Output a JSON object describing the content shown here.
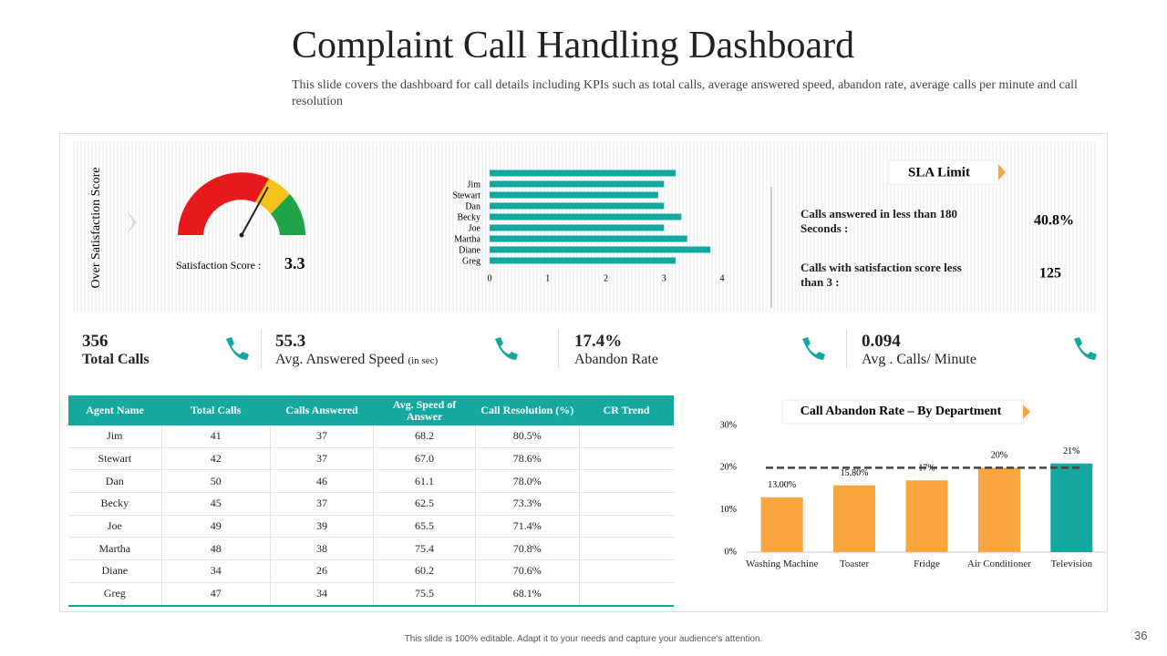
{
  "title": "Complaint Call Handling Dashboard",
  "subtitle": "This slide covers the dashboard for call details including KPIs such as total calls, average answered speed, abandon rate, average calls per minute and call resolution",
  "satisfaction": {
    "axis_label": "Over Satisfaction Score",
    "label": "Satisfaction  Score :",
    "value": 3.3,
    "lim": [
      0,
      5
    ]
  },
  "sla": {
    "title": "SLA Limit",
    "items": [
      {
        "label": "Calls answered in less than 180 Seconds :",
        "value": "40.8%"
      },
      {
        "label": "Calls with satisfaction score less than 3 :",
        "value": 125
      }
    ]
  },
  "kpis": [
    {
      "value": 356,
      "label": "Total Calls"
    },
    {
      "value": 55.3,
      "label": "Avg. Answered Speed",
      "unit": "(in sec)"
    },
    {
      "value": "17.4%",
      "label": "Abandon Rate"
    },
    {
      "value": 0.094,
      "label": "Avg . Calls/ Minute"
    }
  ],
  "chart_data": [
    {
      "type": "barh",
      "categories": [
        null,
        "Jim",
        "Stewart",
        "Dan",
        "Becky",
        "Joe",
        "Martha",
        "Diane",
        "Greg"
      ],
      "values": [
        3.2,
        3.0,
        2.9,
        3.0,
        3.3,
        3.0,
        3.4,
        3.8,
        3.2
      ],
      "color": "#14a8a0",
      "xlim": [
        0,
        4
      ],
      "xticks": [
        0,
        1,
        2,
        3,
        4
      ]
    },
    {
      "type": "column",
      "title": "Call Abandon Rate – By Department",
      "categories": [
        "Washing Machine",
        "Toaster",
        "Fridge",
        "Air Conditioner",
        "Television"
      ],
      "values": [
        13,
        15.8,
        17,
        20,
        21
      ],
      "value_labels": [
        "13.00%",
        "15.80%",
        "17%",
        "20%",
        "21%"
      ],
      "colors": [
        "#f9a640",
        "#f9a640",
        "#f9a640",
        "#f9a640",
        "#14a8a0"
      ],
      "reference_line": 20,
      "ylim": [
        0,
        30
      ],
      "yticks": [
        {
          "value": 0,
          "label": "0%"
        },
        {
          "value": 10,
          "label": "10%"
        },
        {
          "value": 20,
          "label": "20%"
        },
        {
          "value": 30,
          "label": "30%"
        }
      ]
    }
  ],
  "table": {
    "headers": [
      "Agent Name",
      "Total Calls",
      "Calls Answered",
      "Avg. Speed of Answer",
      "Call Resolution (%)",
      "CR Trend"
    ],
    "rows": [
      [
        "Jim",
        41,
        37,
        68.2,
        "80.5%"
      ],
      [
        "Stewart",
        42,
        37,
        "67.0",
        "78.6%"
      ],
      [
        "Dan",
        50,
        46,
        61.1,
        "78.0%"
      ],
      [
        "Becky",
        45,
        37,
        62.5,
        "73.3%"
      ],
      [
        "Joe",
        49,
        39,
        65.5,
        "71.4%"
      ],
      [
        "Martha",
        48,
        38,
        75.4,
        "70.8%"
      ],
      [
        "Diane",
        34,
        26,
        60.2,
        "70.6%"
      ],
      [
        "Greg",
        47,
        34,
        75.5,
        "68.1%"
      ]
    ]
  },
  "footer": "This slide is 100% editable. Adapt it to your needs and capture your audience's attention.",
  "page_number": 36
}
